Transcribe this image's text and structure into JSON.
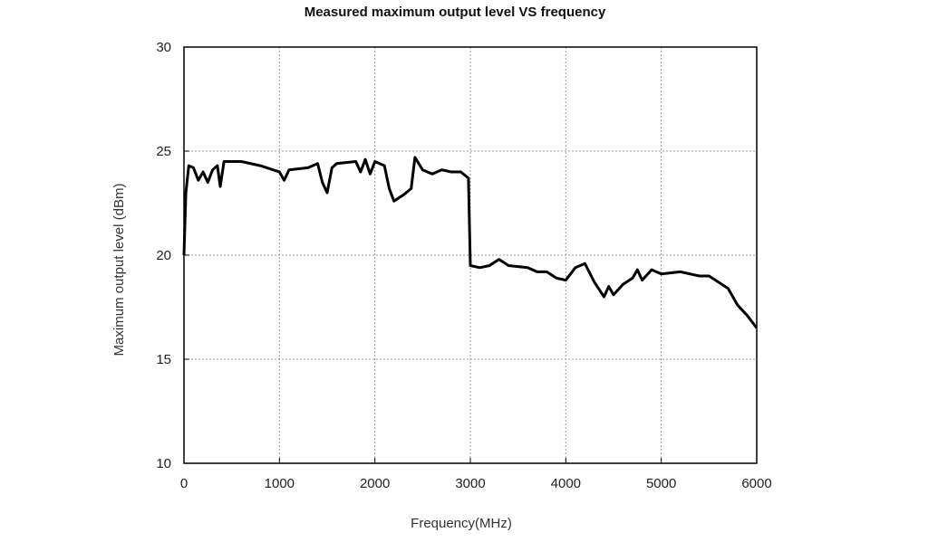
{
  "chart_data": {
    "type": "line",
    "title": "Measured maximum output level VS frequency",
    "xlabel": "Frequency(MHz)",
    "ylabel": "Maximum output level (dBm)",
    "xlim": [
      0,
      6000
    ],
    "ylim": [
      10,
      30
    ],
    "xticks": [
      "0",
      "1000",
      "2000",
      "3000",
      "4000",
      "5000",
      "6000"
    ],
    "yticks": [
      "10",
      "15",
      "20",
      "25",
      "30"
    ],
    "grid": true,
    "series": [
      {
        "name": "Maximum output level",
        "color": "#000000",
        "x": [
          0,
          20,
          50,
          100,
          150,
          200,
          250,
          300,
          350,
          380,
          420,
          600,
          800,
          1000,
          1050,
          1100,
          1300,
          1400,
          1450,
          1500,
          1550,
          1600,
          1800,
          1850,
          1900,
          1950,
          2000,
          2100,
          2150,
          2200,
          2300,
          2380,
          2420,
          2500,
          2600,
          2700,
          2800,
          2900,
          2980,
          3000,
          3100,
          3200,
          3300,
          3400,
          3600,
          3700,
          3800,
          3900,
          4000,
          4100,
          4200,
          4300,
          4400,
          4450,
          4500,
          4600,
          4700,
          4750,
          4800,
          4900,
          5000,
          5200,
          5400,
          5500,
          5600,
          5700,
          5800,
          5900,
          6000
        ],
        "y": [
          20,
          23,
          24.3,
          24.2,
          23.6,
          24.0,
          23.5,
          24.1,
          24.3,
          23.3,
          24.5,
          24.5,
          24.3,
          24.0,
          23.6,
          24.1,
          24.2,
          24.4,
          23.5,
          23.0,
          24.2,
          24.4,
          24.5,
          24.0,
          24.6,
          23.9,
          24.5,
          24.3,
          23.2,
          22.6,
          22.9,
          23.2,
          24.7,
          24.1,
          23.9,
          24.1,
          24.0,
          24.0,
          23.7,
          19.5,
          19.4,
          19.5,
          19.8,
          19.5,
          19.4,
          19.2,
          19.2,
          18.9,
          18.8,
          19.4,
          19.6,
          18.7,
          18.0,
          18.5,
          18.1,
          18.6,
          18.9,
          19.3,
          18.8,
          19.3,
          19.1,
          19.2,
          19.0,
          19.0,
          18.7,
          18.4,
          17.6,
          17.1,
          16.5
        ]
      }
    ]
  }
}
